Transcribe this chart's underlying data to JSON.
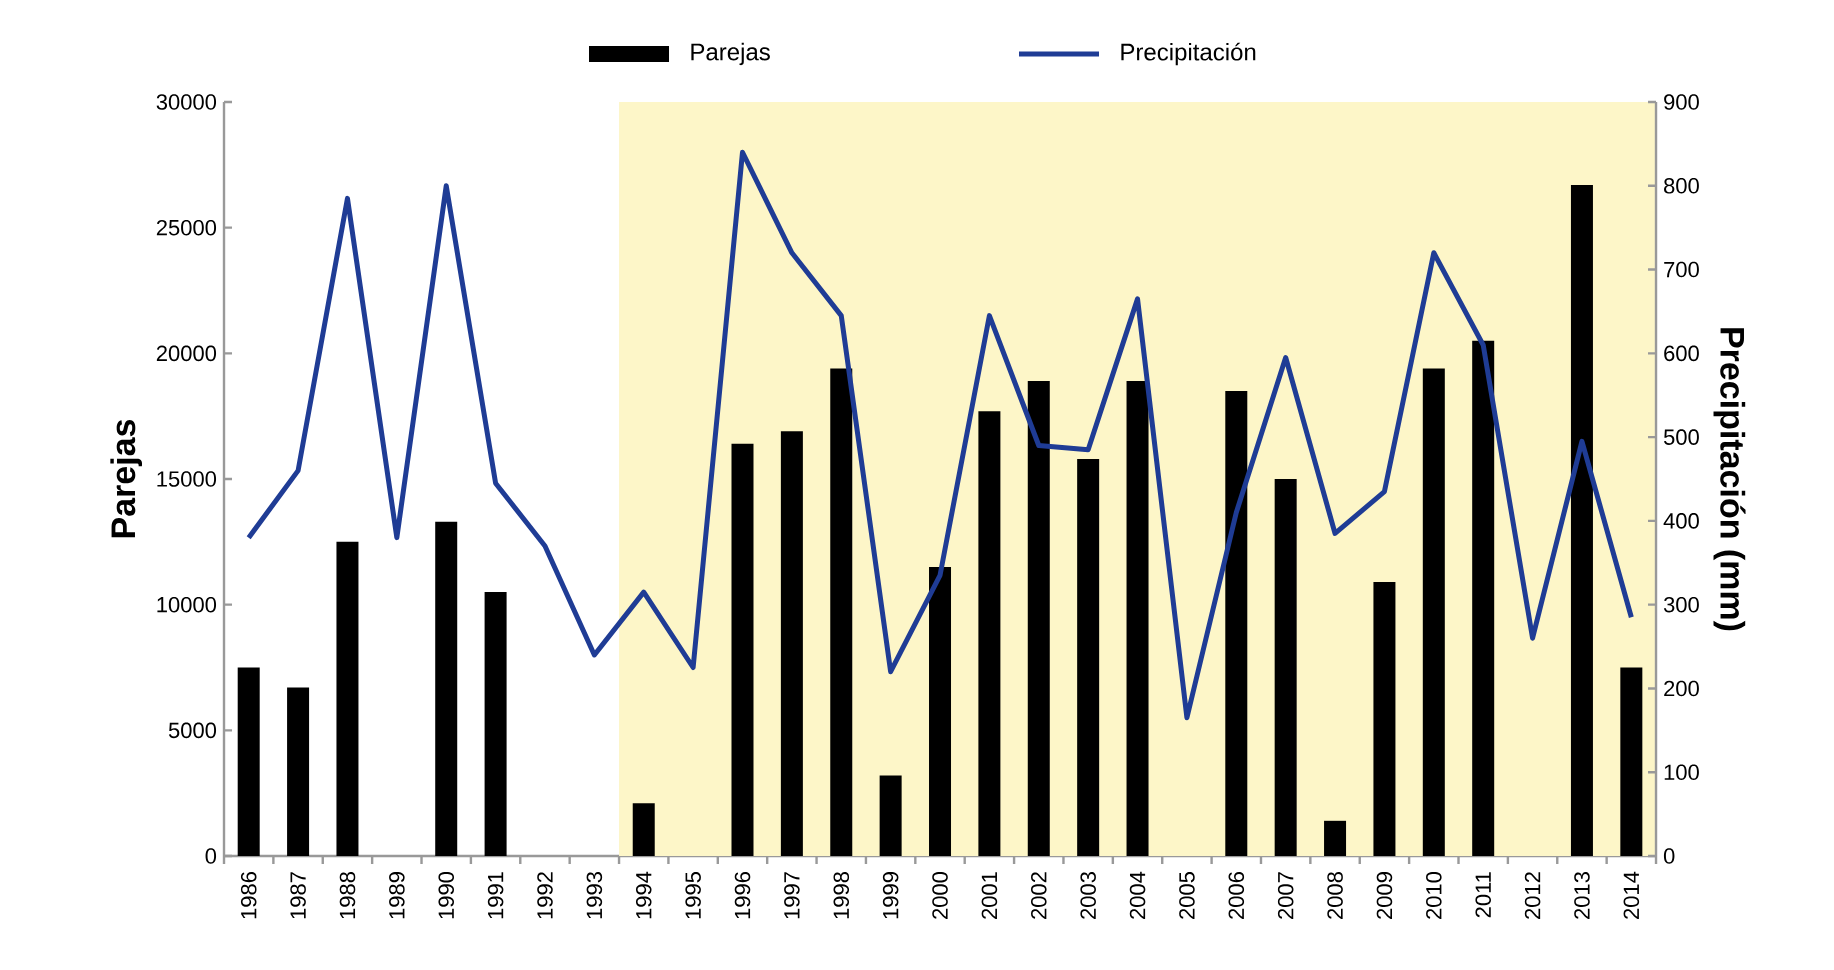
{
  "chart_data": {
    "type": "bar",
    "ylabel": "Parejas",
    "y2label": "Precipitación (mm)",
    "categories": [
      "1986",
      "1987",
      "1988",
      "1989",
      "1990",
      "1991",
      "1992",
      "1993",
      "1994",
      "1995",
      "1996",
      "1997",
      "1998",
      "1999",
      "2000",
      "2001",
      "2002",
      "2003",
      "2004",
      "2005",
      "2006",
      "2007",
      "2008",
      "2009",
      "2010",
      "2011",
      "2012",
      "2013",
      "2014"
    ],
    "series": [
      {
        "name": "Parejas",
        "color": "#000000",
        "values": [
          7500,
          6700,
          12500,
          0,
          13300,
          10500,
          0,
          0,
          2100,
          0,
          16400,
          16900,
          19400,
          3200,
          11500,
          17700,
          18900,
          15800,
          18900,
          0,
          18500,
          15000,
          1400,
          10900,
          19400,
          20500,
          0,
          26700,
          7500
        ]
      },
      {
        "name": "Precipitación",
        "type": "line",
        "axis": "y2",
        "color": "#1f3c95",
        "values": [
          380,
          460,
          785,
          380,
          800,
          445,
          370,
          240,
          315,
          225,
          840,
          720,
          645,
          220,
          335,
          645,
          490,
          485,
          665,
          165,
          410,
          595,
          385,
          435,
          720,
          610,
          260,
          495,
          285
        ]
      }
    ],
    "ylim": [
      0,
      30000
    ],
    "yticks": [
      0,
      5000,
      10000,
      15000,
      20000,
      25000,
      30000
    ],
    "y2lim": [
      0,
      900
    ],
    "y2ticks": [
      0,
      100,
      200,
      300,
      400,
      500,
      600,
      700,
      800,
      900
    ],
    "bands": [
      {
        "axis": "x",
        "from": "1994",
        "to": "2014",
        "label": null,
        "color": "#fdf6c8"
      }
    ],
    "legend": "top",
    "grid": false,
    "marker": "none",
    "line_style": "solid"
  }
}
